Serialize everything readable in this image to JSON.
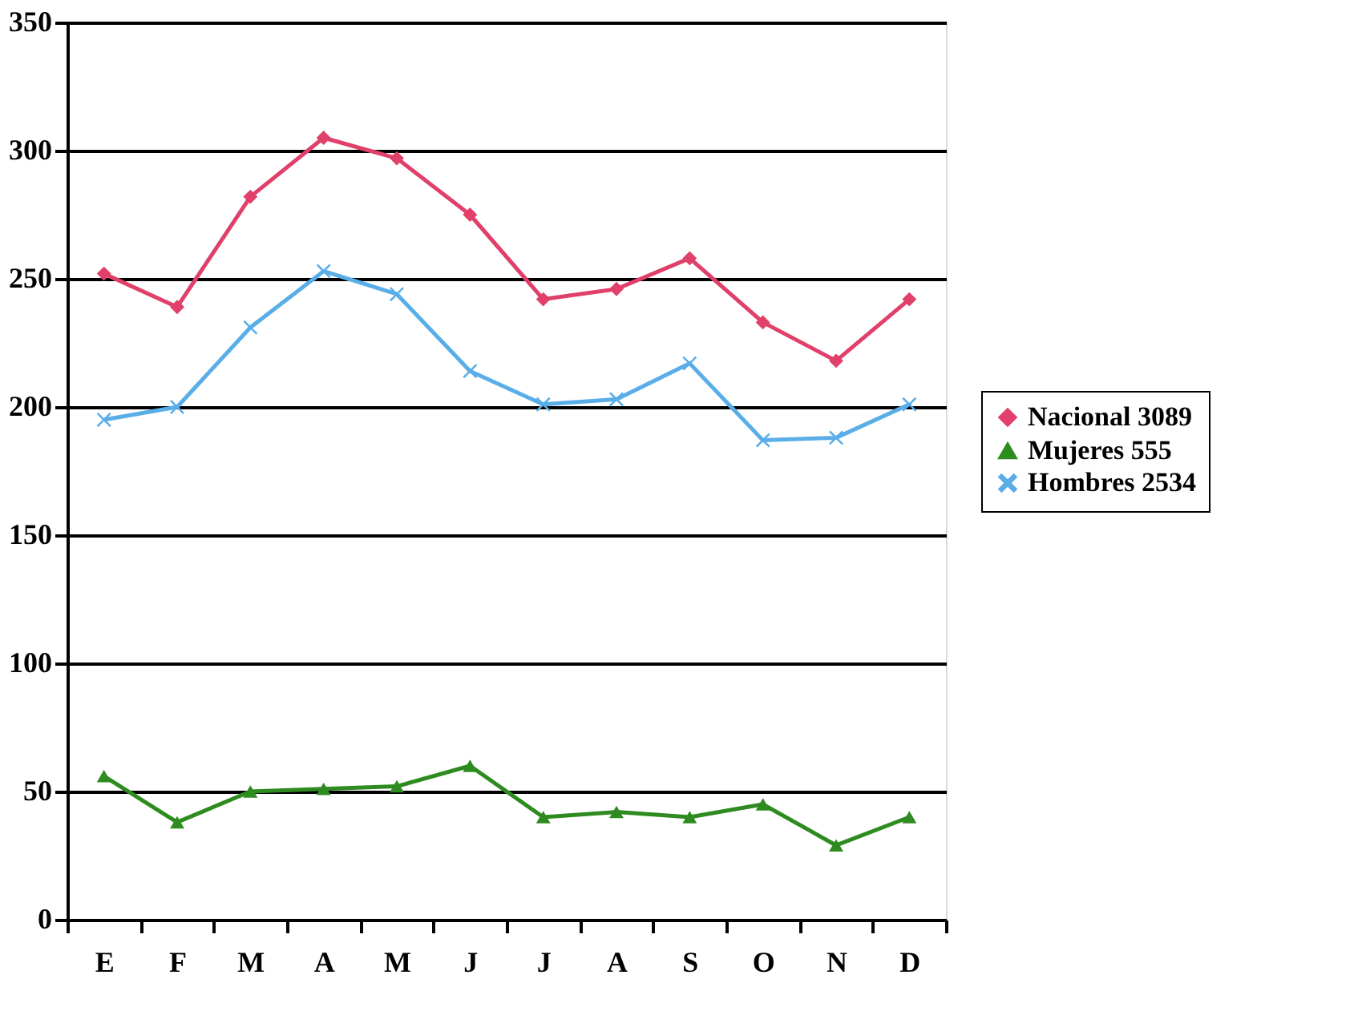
{
  "chart_data": {
    "type": "line",
    "categories": [
      "E",
      "F",
      "M",
      "A",
      "M",
      "J",
      "J",
      "A",
      "S",
      "O",
      "N",
      "D"
    ],
    "series": [
      {
        "name": "Nacional 3089",
        "color": "#e0406a",
        "marker": "diamond",
        "values": [
          252,
          239,
          282,
          305,
          297,
          275,
          242,
          246,
          258,
          233,
          218,
          242
        ]
      },
      {
        "name": "Mujeres 555",
        "color": "#2e8b1f",
        "marker": "triangle",
        "values": [
          56,
          38,
          50,
          51,
          52,
          60,
          40,
          42,
          40,
          45,
          29,
          40
        ]
      },
      {
        "name": "Hombres 2534",
        "color": "#5aaee8",
        "marker": "cross",
        "values": [
          195,
          200,
          231,
          253,
          244,
          214,
          201,
          203,
          217,
          187,
          188,
          201
        ]
      }
    ],
    "ylim": [
      0,
      350
    ],
    "yticks": [
      0,
      50,
      100,
      150,
      200,
      250,
      300,
      350
    ],
    "grid": "y",
    "legend": "right",
    "line_style": "solid"
  }
}
